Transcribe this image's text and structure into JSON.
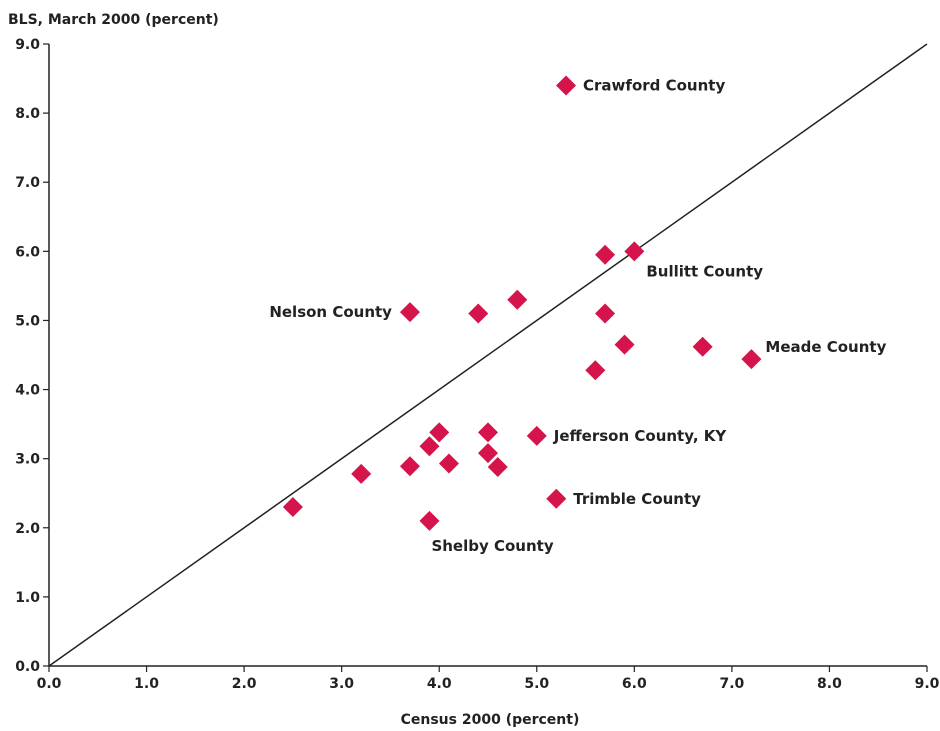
{
  "chart_data": {
    "type": "scatter",
    "title": "",
    "xlabel": "Census 2000 (percent)",
    "ylabel": "BLS, March 2000 (percent)",
    "xlim": [
      0,
      9
    ],
    "ylim": [
      0,
      9
    ],
    "x_ticks": [
      "0.0",
      "1.0",
      "2.0",
      "3.0",
      "4.0",
      "5.0",
      "6.0",
      "7.0",
      "8.0",
      "9.0"
    ],
    "y_ticks": [
      "0.0",
      "1.0",
      "2.0",
      "3.0",
      "4.0",
      "5.0",
      "6.0",
      "7.0",
      "8.0",
      "9.0"
    ],
    "grid": false,
    "reference_line": {
      "from": [
        0,
        0
      ],
      "to": [
        9,
        9
      ]
    },
    "marker": "diamond",
    "marker_color": "#d4144a",
    "points": [
      {
        "x": 5.3,
        "y": 8.4,
        "label": "Crawford County",
        "label_side": "right"
      },
      {
        "x": 6.0,
        "y": 6.0,
        "label": "Bullitt County",
        "label_side": "below-right"
      },
      {
        "x": 5.7,
        "y": 5.95,
        "label": ""
      },
      {
        "x": 3.7,
        "y": 5.12,
        "label": "Nelson County",
        "label_side": "left"
      },
      {
        "x": 4.4,
        "y": 5.1,
        "label": ""
      },
      {
        "x": 4.8,
        "y": 5.3,
        "label": ""
      },
      {
        "x": 5.7,
        "y": 5.1,
        "label": ""
      },
      {
        "x": 5.9,
        "y": 4.65,
        "label": ""
      },
      {
        "x": 5.6,
        "y": 4.28,
        "label": ""
      },
      {
        "x": 6.7,
        "y": 4.62,
        "label": ""
      },
      {
        "x": 7.2,
        "y": 4.44,
        "label": "Meade County",
        "label_side": "above-right"
      },
      {
        "x": 4.0,
        "y": 3.38,
        "label": ""
      },
      {
        "x": 4.5,
        "y": 3.38,
        "label": ""
      },
      {
        "x": 5.0,
        "y": 3.33,
        "label": "Jefferson County, KY",
        "label_side": "right"
      },
      {
        "x": 3.9,
        "y": 3.18,
        "label": ""
      },
      {
        "x": 4.5,
        "y": 3.08,
        "label": ""
      },
      {
        "x": 4.1,
        "y": 2.93,
        "label": ""
      },
      {
        "x": 3.7,
        "y": 2.89,
        "label": ""
      },
      {
        "x": 4.6,
        "y": 2.88,
        "label": ""
      },
      {
        "x": 3.2,
        "y": 2.78,
        "label": ""
      },
      {
        "x": 5.2,
        "y": 2.42,
        "label": "Trimble County",
        "label_side": "right"
      },
      {
        "x": 2.5,
        "y": 2.3,
        "label": ""
      },
      {
        "x": 3.9,
        "y": 2.1,
        "label": "Shelby County",
        "label_side": "below"
      }
    ]
  }
}
